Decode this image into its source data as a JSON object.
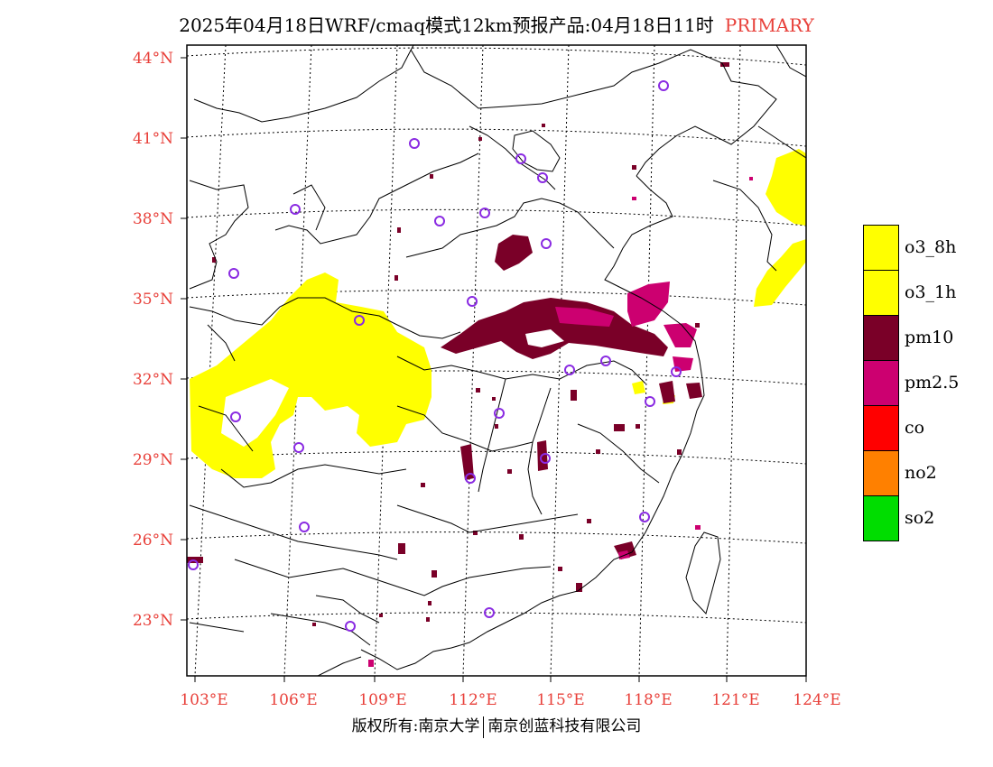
{
  "title": {
    "text": "2025年04月18日WRF/cmaq模式12km预报产品:04月18日11时",
    "tag": "PRIMARY"
  },
  "map": {
    "lat_labels": [
      "44°N",
      "41°N",
      "38°N",
      "35°N",
      "32°N",
      "29°N",
      "26°N",
      "23°N"
    ],
    "lon_labels": [
      "103°E",
      "106°E",
      "109°E",
      "112°E",
      "115°E",
      "118°E",
      "121°E",
      "124°E"
    ]
  },
  "legend": [
    {
      "label": "o3_8h",
      "color": "#ffff00"
    },
    {
      "label": "o3_1h",
      "color": "#ffff00"
    },
    {
      "label": "pm10",
      "color": "#7a0028"
    },
    {
      "label": "pm2.5",
      "color": "#cc0070"
    },
    {
      "label": "co",
      "color": "#ff0000"
    },
    {
      "label": "no2",
      "color": "#ff8000"
    },
    {
      "label": "so2",
      "color": "#00dd00"
    }
  ],
  "colors": {
    "o3": "#ffff00",
    "pm10": "#7a0028",
    "pm25": "#cc0070",
    "station": "#8a2be2",
    "axis_label": "#e8403a"
  },
  "footer": {
    "left": "版权所有:南京大学",
    "right": "南京创蓝科技有限公司"
  }
}
